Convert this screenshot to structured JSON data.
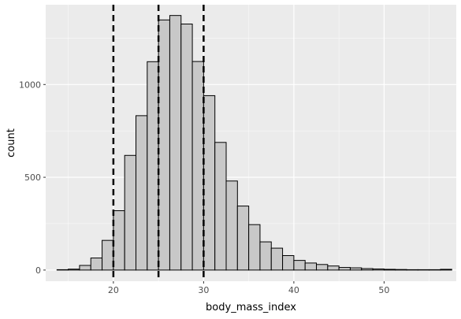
{
  "chart_data": {
    "type": "bar",
    "subtype": "histogram",
    "xlabel": "body_mass_index",
    "ylabel": "count",
    "xlim": [
      12.5,
      58
    ],
    "ylim": [
      -60,
      1430
    ],
    "bin_width": 1.25,
    "bins": [
      {
        "start": 13.75,
        "count": 2
      },
      {
        "start": 15.0,
        "count": 5
      },
      {
        "start": 16.25,
        "count": 25
      },
      {
        "start": 17.5,
        "count": 65
      },
      {
        "start": 18.75,
        "count": 160
      },
      {
        "start": 20.0,
        "count": 320
      },
      {
        "start": 21.25,
        "count": 618
      },
      {
        "start": 22.5,
        "count": 832
      },
      {
        "start": 23.75,
        "count": 1123
      },
      {
        "start": 25.0,
        "count": 1348
      },
      {
        "start": 26.25,
        "count": 1372
      },
      {
        "start": 27.5,
        "count": 1326
      },
      {
        "start": 28.75,
        "count": 1124
      },
      {
        "start": 30.0,
        "count": 940
      },
      {
        "start": 31.25,
        "count": 688
      },
      {
        "start": 32.5,
        "count": 480
      },
      {
        "start": 33.75,
        "count": 345
      },
      {
        "start": 35.0,
        "count": 245
      },
      {
        "start": 36.25,
        "count": 152
      },
      {
        "start": 37.5,
        "count": 118
      },
      {
        "start": 38.75,
        "count": 78
      },
      {
        "start": 40.0,
        "count": 52
      },
      {
        "start": 41.25,
        "count": 38
      },
      {
        "start": 42.5,
        "count": 30
      },
      {
        "start": 43.75,
        "count": 22
      },
      {
        "start": 45.0,
        "count": 14
      },
      {
        "start": 46.25,
        "count": 12
      },
      {
        "start": 47.5,
        "count": 8
      },
      {
        "start": 48.75,
        "count": 6
      },
      {
        "start": 50.0,
        "count": 4
      },
      {
        "start": 51.25,
        "count": 3
      },
      {
        "start": 52.5,
        "count": 2
      },
      {
        "start": 53.75,
        "count": 2
      },
      {
        "start": 55.0,
        "count": 2
      },
      {
        "start": 56.25,
        "count": 4
      }
    ],
    "reference_lines": [
      20,
      25,
      30
    ],
    "x_ticks": [
      20,
      30,
      40,
      50
    ],
    "x_tick_labels": [
      "20",
      "30",
      "40",
      "50"
    ],
    "y_ticks": [
      0,
      500,
      1000
    ],
    "y_tick_labels": [
      "0",
      "500",
      "1000"
    ],
    "grid": true,
    "colors": {
      "panel": "#ebebeb",
      "grid_major": "#ffffff",
      "bar_fill": "#c8c8c8",
      "bar_stroke": "#000000",
      "ref_line": "#000000",
      "tick": "#333333"
    }
  }
}
